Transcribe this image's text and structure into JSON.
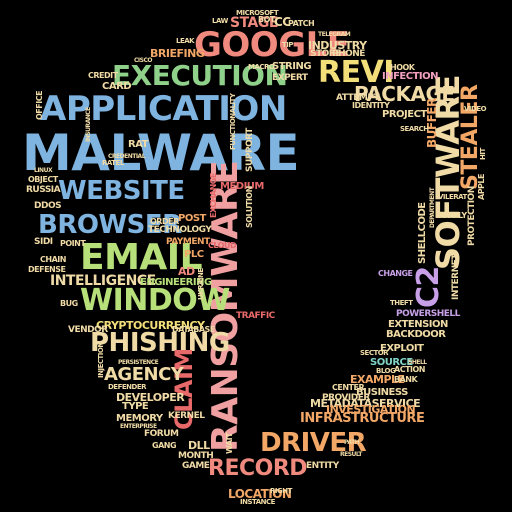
{
  "title": "",
  "palette": {
    "blue": "#7fb3e0",
    "steel": "#6f9bc2",
    "green": "#8fd08a",
    "lime": "#b7e07a",
    "orange": "#f2a766",
    "salmon": "#f08a7e",
    "red": "#e8696a",
    "pink": "#f2a0c0",
    "violet": "#c7a0e8",
    "yellow": "#f3df7a",
    "teal": "#7fd3c6",
    "cream": "#f0dba6"
  },
  "words": [
    {
      "text": "MALWARE",
      "color": "#7fb3e0"
    },
    {
      "text": "APPLICATION",
      "color": "#7fb3e0"
    },
    {
      "text": "RANSOMWARE",
      "color": "#f0a0a0"
    },
    {
      "text": "GOOGLE",
      "color": "#f08a7e"
    },
    {
      "text": "EXECUTION",
      "color": "#8fd08a"
    },
    {
      "text": "WEBSITE",
      "color": "#7fb3e0"
    },
    {
      "text": "BROWSER",
      "color": "#7fb3e0"
    },
    {
      "text": "EMAIL",
      "color": "#b7e07a"
    },
    {
      "text": "WINDOW",
      "color": "#b7e07a"
    },
    {
      "text": "PHISHING",
      "color": "#f0dba6"
    },
    {
      "text": "SOFTWARE",
      "color": "#f0dba6"
    },
    {
      "text": "C2",
      "color": "#c7a0e8"
    },
    {
      "text": "REVI",
      "color": "#f3df7a"
    },
    {
      "text": "PACKAGE",
      "color": "#f0dba6"
    },
    {
      "text": "STEALER",
      "color": "#f2a766"
    },
    {
      "text": "DRIVER",
      "color": "#f2a766"
    },
    {
      "text": "RECORD",
      "color": "#f08a7e"
    },
    {
      "text": "CLAIM",
      "color": "#e8696a"
    },
    {
      "text": "AGENCY",
      "color": "#f0dba6"
    },
    {
      "text": "INTELLIGENCE",
      "color": "#f0dba6"
    },
    {
      "text": "CRYPTOCURRENCY",
      "color": "#f3df7a"
    },
    {
      "text": "INFRASTRUCTURE",
      "color": "#f2a766"
    },
    {
      "text": "METADATASERVICE",
      "color": "#f0dba6"
    },
    {
      "text": "INVESTIGATION",
      "color": "#f2a766"
    },
    {
      "text": "EXAMPLE",
      "color": "#f2a766"
    },
    {
      "text": "BUSINESS",
      "color": "#f0dba6"
    },
    {
      "text": "SOURCE",
      "color": "#7fd3c6"
    },
    {
      "text": "EXPLOIT",
      "color": "#f0dba6"
    },
    {
      "text": "BACKDOOR",
      "color": "#f0dba6"
    },
    {
      "text": "EXTENSION",
      "color": "#f0dba6"
    },
    {
      "text": "POWERSHELL",
      "color": "#c7a0e8"
    },
    {
      "text": "PROJECT",
      "color": "#f0dba6"
    },
    {
      "text": "ATTEMPT",
      "color": "#f0dba6"
    },
    {
      "text": "IDENTITY",
      "color": "#f0dba6"
    },
    {
      "text": "INFECTION",
      "color": "#f2a0c0"
    },
    {
      "text": "INDUSTRY",
      "color": "#f0dba6"
    },
    {
      "text": "STORE",
      "color": "#f0dba6"
    },
    {
      "text": "PHONE",
      "color": "#f0dba6"
    },
    {
      "text": "STAGE",
      "color": "#f08a7e"
    },
    {
      "text": "CC",
      "color": "#f0dba6"
    },
    {
      "text": "PATCH",
      "color": "#f0dba6"
    },
    {
      "text": "STRING",
      "color": "#f0dba6"
    },
    {
      "text": "EXPERT",
      "color": "#f0dba6"
    },
    {
      "text": "BRIEFING",
      "color": "#f2a766"
    },
    {
      "text": "CARD",
      "color": "#f0dba6"
    },
    {
      "text": "CREDIT",
      "color": "#f0dba6"
    },
    {
      "text": "RAT",
      "color": "#f0dba6"
    },
    {
      "text": "POST",
      "color": "#f2a766"
    },
    {
      "text": "TECHNOLOGY",
      "color": "#f0dba6"
    },
    {
      "text": "PAYMENT",
      "color": "#f2a766"
    },
    {
      "text": "PLC",
      "color": "#f2a766"
    },
    {
      "text": "AD",
      "color": "#f08a7e"
    },
    {
      "text": "ENGINEERING",
      "color": "#b7e07a"
    },
    {
      "text": "CHAIN",
      "color": "#f0dba6"
    },
    {
      "text": "DEFENSE",
      "color": "#f0dba6"
    },
    {
      "text": "SIDI",
      "color": "#f0dba6"
    },
    {
      "text": "POINT",
      "color": "#f0dba6"
    },
    {
      "text": "DDOS",
      "color": "#f0dba6"
    },
    {
      "text": "RUSSIA",
      "color": "#f0dba6"
    },
    {
      "text": "OBJECT",
      "color": "#f0dba6"
    },
    {
      "text": "DEVELOPER",
      "color": "#f0dba6"
    },
    {
      "text": "TYPE",
      "color": "#f0dba6"
    },
    {
      "text": "MEMORY",
      "color": "#f0dba6"
    },
    {
      "text": "KERNEL",
      "color": "#f0dba6"
    },
    {
      "text": "FORUM",
      "color": "#f0dba6"
    },
    {
      "text": "GANG",
      "color": "#f0dba6"
    },
    {
      "text": "MONTH",
      "color": "#f0dba6"
    },
    {
      "text": "GAME",
      "color": "#f0dba6"
    },
    {
      "text": "LOCATION",
      "color": "#f2a766"
    },
    {
      "text": "INSTANCE",
      "color": "#f0dba6"
    },
    {
      "text": "RIGHT",
      "color": "#f0dba6"
    },
    {
      "text": "ENTITY",
      "color": "#f0dba6"
    },
    {
      "text": "PROVIDER",
      "color": "#f0dba6"
    },
    {
      "text": "CENTER",
      "color": "#f0dba6"
    },
    {
      "text": "SECTOR",
      "color": "#f0dba6"
    },
    {
      "text": "BANK",
      "color": "#f0dba6"
    },
    {
      "text": "ACTION",
      "color": "#f0dba6"
    },
    {
      "text": "CHANGE",
      "color": "#c7a0e8"
    },
    {
      "text": "THEFT",
      "color": "#f0dba6"
    },
    {
      "text": "INTERNET",
      "color": "#f0dba6"
    },
    {
      "text": "SHELLCODE",
      "color": "#f0dba6"
    },
    {
      "text": "PROTECTION",
      "color": "#f0dba6"
    },
    {
      "text": "SUPPLY",
      "color": "#f0dba6"
    },
    {
      "text": "APPLE",
      "color": "#f0dba6"
    },
    {
      "text": "BUFFER",
      "color": "#f2a766"
    },
    {
      "text": "HOOK",
      "color": "#f0dba6"
    },
    {
      "text": "DATABASE",
      "color": "#f0dba6"
    },
    {
      "text": "VENDOR",
      "color": "#f0dba6"
    },
    {
      "text": "MEDIUM",
      "color": "#e8696a"
    },
    {
      "text": "EXCHANGE",
      "color": "#e8696a"
    },
    {
      "text": "ORDER",
      "color": "#f0dba6"
    },
    {
      "text": "MICROSOFT",
      "color": "#f0dba6"
    },
    {
      "text": "LAW",
      "color": "#f0dba6"
    },
    {
      "text": "BOT",
      "color": "#f0dba6"
    },
    {
      "text": "LEAK",
      "color": "#f0dba6"
    },
    {
      "text": "MACRO",
      "color": "#f0dba6"
    },
    {
      "text": "TIP",
      "color": "#f0dba6"
    },
    {
      "text": "TELEGRAM",
      "color": "#f0dba6"
    },
    {
      "text": "OFFICE",
      "color": "#f0dba6"
    },
    {
      "text": "VIDEO",
      "color": "#f0dba6"
    },
    {
      "text": "SEARCH",
      "color": "#f0dba6"
    },
    {
      "text": "HIT",
      "color": "#f0dba6"
    },
    {
      "text": "BLOG",
      "color": "#f0dba6"
    },
    {
      "text": "TRAFFIC",
      "color": "#e8696a"
    },
    {
      "text": "CLOUD",
      "color": "#e8696a"
    },
    {
      "text": "SOLUTION",
      "color": "#f0dba6"
    },
    {
      "text": "SUPPORT",
      "color": "#f0dba6"
    },
    {
      "text": "WAIT",
      "color": "#f0dba6"
    },
    {
      "text": "RATEL",
      "color": "#f0dba6"
    },
    {
      "text": "BUG",
      "color": "#f0dba6"
    },
    {
      "text": "CISCO",
      "color": "#f0dba6"
    },
    {
      "text": "UKRAINE",
      "color": "#f0dba6"
    },
    {
      "text": "SHELL",
      "color": "#f0dba6"
    },
    {
      "text": "PATH",
      "color": "#f0dba6"
    },
    {
      "text": "RESULT",
      "color": "#f0dba6"
    },
    {
      "text": "DEPARTMENT",
      "color": "#f0dba6"
    },
    {
      "text": "VILERAT",
      "color": "#f0dba6"
    },
    {
      "text": "DLL",
      "color": "#f0dba6"
    },
    {
      "text": "INJECTION",
      "color": "#f0dba6"
    },
    {
      "text": "PERSISTENCE",
      "color": "#f0dba6"
    },
    {
      "text": "DEFENDER",
      "color": "#f0dba6"
    },
    {
      "text": "ENTERPRISE",
      "color": "#f0dba6"
    },
    {
      "text": "FUNCTIONALITY",
      "color": "#f0dba6"
    },
    {
      "text": "CREDENTIAL",
      "color": "#f0dba6"
    },
    {
      "text": "INSURANCE",
      "color": "#f0dba6"
    },
    {
      "text": "LINUX",
      "color": "#f0dba6"
    }
  ]
}
